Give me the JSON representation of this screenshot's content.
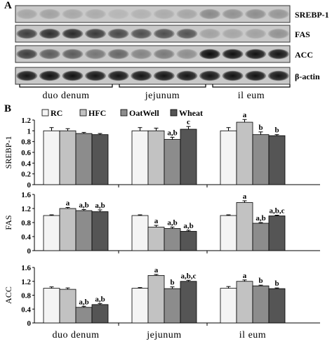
{
  "panel_a": {
    "label": "A",
    "rows": [
      {
        "label": "SREBP-1",
        "lanes": [
          0.18,
          0.2,
          0.17,
          0.15,
          0.1,
          0.12,
          0.15,
          0.18,
          0.32,
          0.28,
          0.3,
          0.26
        ]
      },
      {
        "label": "FAS",
        "lanes": [
          0.7,
          0.78,
          0.8,
          0.72,
          0.65,
          0.62,
          0.62,
          0.6,
          0.2,
          0.18,
          0.2,
          0.28
        ]
      },
      {
        "label": "ACC",
        "lanes": [
          0.7,
          0.55,
          0.55,
          0.42,
          0.5,
          0.35,
          0.4,
          0.3,
          0.95,
          0.92,
          0.92,
          0.9
        ]
      },
      {
        "label": "β-actin",
        "lanes": [
          0.9,
          0.92,
          0.92,
          0.9,
          0.9,
          0.9,
          0.9,
          0.9,
          0.9,
          0.92,
          0.92,
          0.9
        ]
      }
    ],
    "group_labels": [
      "duo denum",
      "jejunum",
      "il eum"
    ]
  },
  "panel_b": {
    "label": "B",
    "legend": [
      "RC",
      "HFC",
      "OatWell",
      "Wheat"
    ],
    "colors": [
      "#f4f4f4",
      "#c2c2c2",
      "#8c8c8c",
      "#555555"
    ]
  },
  "chart_data": [
    {
      "type": "bar",
      "ylabel": "SREBP-1",
      "categories": [
        "duo denum",
        "jejunum",
        "il eum"
      ],
      "ylim": [
        0,
        1.2
      ],
      "yticks": [
        "0",
        "0.2",
        "0.4",
        "0.6",
        "0.8",
        "1",
        "1.2"
      ],
      "series": [
        {
          "name": "RC",
          "values": [
            1.0,
            1.0,
            1.0
          ],
          "errors": [
            0.06,
            0.06,
            0.06
          ],
          "labels": [
            "",
            "",
            ""
          ]
        },
        {
          "name": "HFC",
          "values": [
            1.0,
            1.0,
            1.16
          ],
          "errors": [
            0.04,
            0.05,
            0.05
          ],
          "labels": [
            "",
            "",
            "a"
          ]
        },
        {
          "name": "OatWell",
          "values": [
            0.95,
            0.84,
            0.93
          ],
          "errors": [
            0.02,
            0.04,
            0.05
          ],
          "labels": [
            "",
            "a,b",
            "b"
          ]
        },
        {
          "name": "Wheat",
          "values": [
            0.93,
            1.03,
            0.91
          ],
          "errors": [
            0.02,
            0.05,
            0.02
          ],
          "labels": [
            "",
            "c",
            "b"
          ]
        }
      ]
    },
    {
      "type": "bar",
      "ylabel": "FAS",
      "categories": [
        "duo denum",
        "jejunum",
        "il eum"
      ],
      "ylim": [
        0,
        1.6
      ],
      "yticks": [
        "0",
        "0.4",
        "0.8",
        "1.2",
        "1.6"
      ],
      "series": [
        {
          "name": "RC",
          "values": [
            1.0,
            1.0,
            1.0
          ],
          "errors": [
            0.02,
            0.02,
            0.02
          ],
          "labels": [
            "",
            "",
            ""
          ]
        },
        {
          "name": "HFC",
          "values": [
            1.2,
            0.67,
            1.37
          ],
          "errors": [
            0.03,
            0.05,
            0.05
          ],
          "labels": [
            "a",
            "a",
            "a"
          ]
        },
        {
          "name": "OatWell",
          "values": [
            1.14,
            0.63,
            0.78
          ],
          "errors": [
            0.03,
            0.04,
            0.02
          ],
          "labels": [
            "a,b",
            "a,b",
            "a,b"
          ]
        },
        {
          "name": "Wheat",
          "values": [
            1.11,
            0.55,
            0.99
          ],
          "errors": [
            0.05,
            0.03,
            0.02
          ],
          "labels": [
            "a,b",
            "a,b",
            "a,b,c"
          ]
        }
      ]
    },
    {
      "type": "bar",
      "ylabel": "ACC",
      "categories": [
        "duo denum",
        "jejunum",
        "il eum"
      ],
      "ylim": [
        0,
        1.6
      ],
      "yticks": [
        "0",
        "0.4",
        "0.8",
        "1.2",
        "1.6"
      ],
      "series": [
        {
          "name": "RC",
          "values": [
            1.0,
            1.0,
            1.0
          ],
          "errors": [
            0.04,
            0.02,
            0.05
          ],
          "labels": [
            "",
            "",
            ""
          ]
        },
        {
          "name": "HFC",
          "values": [
            0.97,
            1.37,
            1.2
          ],
          "errors": [
            0.04,
            0.03,
            0.04
          ],
          "labels": [
            "",
            "a",
            "a"
          ]
        },
        {
          "name": "OatWell",
          "values": [
            0.45,
            0.99,
            1.07
          ],
          "errors": [
            0.03,
            0.05,
            0.02
          ],
          "labels": [
            "a,b",
            "b",
            "b"
          ]
        },
        {
          "name": "Wheat",
          "values": [
            0.53,
            1.2,
            0.99
          ],
          "errors": [
            0.03,
            0.03,
            0.02
          ],
          "labels": [
            "a,b",
            "a,b,c",
            "b"
          ]
        }
      ]
    }
  ]
}
